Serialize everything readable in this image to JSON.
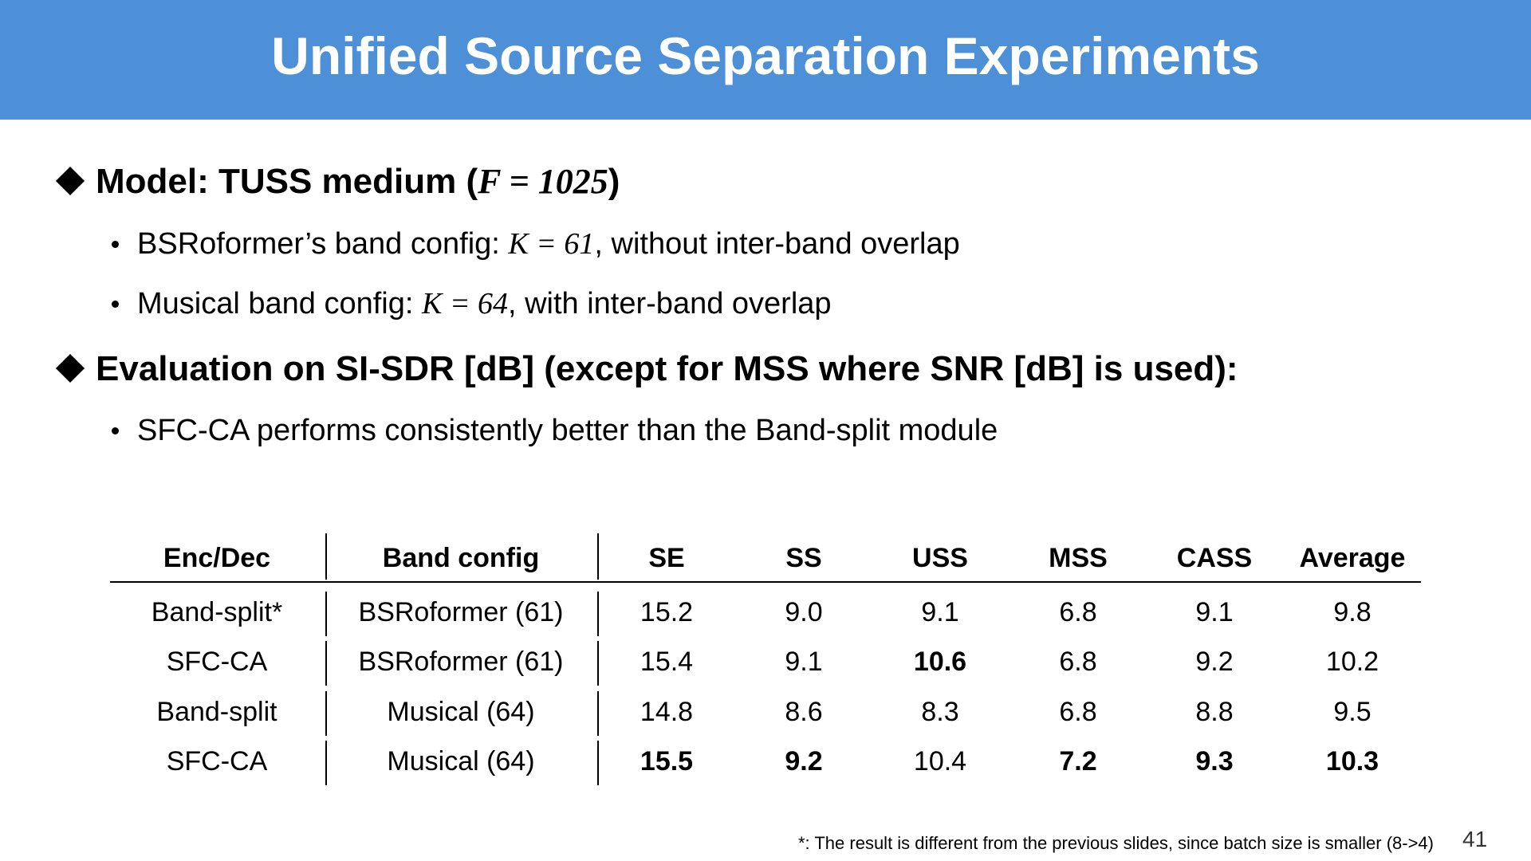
{
  "header": {
    "title": "Unified Source Separation Experiments"
  },
  "bullets": [
    {
      "text": "Model: TUSS medium (",
      "math": "F = 1025",
      "tail": ")",
      "items": [
        {
          "text": "BSRoformer’s band config: ",
          "math": "K = 61",
          "tail": ", without inter-band overlap"
        },
        {
          "text": "Musical band config: ",
          "math": "K = 64",
          "tail": ", with inter-band overlap"
        }
      ]
    },
    {
      "text": "Evaluation on SI-SDR [dB] (except for MSS where SNR [dB] is used):",
      "items": [
        {
          "text": "SFC-CA performs consistently better than the Band-split module"
        }
      ]
    }
  ],
  "table": {
    "columns": [
      "Enc/Dec",
      "Band config",
      "SE",
      "SS",
      "USS",
      "MSS",
      "CASS",
      "Average"
    ],
    "rows": [
      [
        "Band-split*",
        "BSRoformer (61)",
        "15.2",
        "9.0",
        "9.1",
        "6.8",
        "9.1",
        "9.8"
      ],
      [
        "SFC-CA",
        "BSRoformer (61)",
        "15.4",
        "9.1",
        {
          "text": "10.6",
          "bold": true
        },
        "6.8",
        "9.2",
        "10.2"
      ],
      [
        "Band-split",
        "Musical (64)",
        "14.8",
        "8.6",
        "8.3",
        "6.8",
        "8.8",
        "9.5"
      ],
      [
        "SFC-CA",
        "Musical (64)",
        {
          "text": "15.5",
          "bold": true
        },
        {
          "text": "9.2",
          "bold": true
        },
        "10.4",
        {
          "text": "7.2",
          "bold": true
        },
        {
          "text": "9.3",
          "bold": true
        },
        {
          "text": "10.3",
          "bold": true
        }
      ]
    ]
  },
  "footnote": "*: The result is different from the previous slides, since batch size is smaller (8->4)",
  "page_number": "41"
}
